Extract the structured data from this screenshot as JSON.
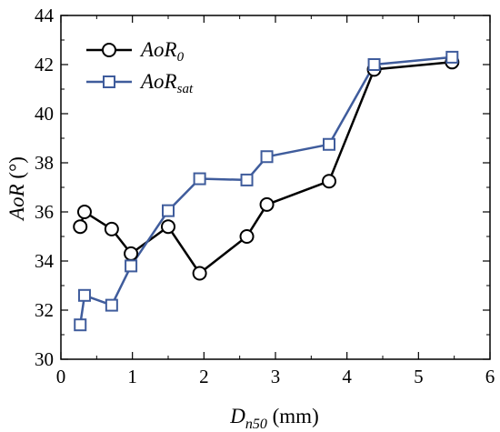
{
  "chart_data": {
    "type": "line",
    "xlabel": {
      "main": "D",
      "sub": "n50",
      "unit": " (mm)"
    },
    "ylabel": {
      "main": "AoR",
      "unit": " (°)"
    },
    "xlim": [
      0,
      6
    ],
    "ylim": [
      30,
      44
    ],
    "xticks": [
      "0",
      "1",
      "2",
      "3",
      "4",
      "5",
      "6"
    ],
    "yticks": [
      "30",
      "32",
      "34",
      "36",
      "38",
      "40",
      "42",
      "44"
    ],
    "grid": false,
    "legend_position": "top-left",
    "series": [
      {
        "name": {
          "main": "AoR",
          "sub": "0"
        },
        "marker": "circle",
        "color": "#000000",
        "points": [
          [
            0.27,
            35.4
          ],
          [
            0.33,
            36.0
          ],
          [
            0.71,
            35.3
          ],
          [
            0.98,
            34.3
          ],
          [
            1.5,
            35.4
          ],
          [
            1.94,
            33.5
          ],
          [
            2.6,
            35.0
          ],
          [
            2.88,
            36.3
          ],
          [
            3.75,
            37.25
          ],
          [
            4.38,
            41.8
          ],
          [
            5.47,
            42.1
          ]
        ]
      },
      {
        "name": {
          "main": "AoR",
          "sub": "sat"
        },
        "marker": "square",
        "color": "#3f5c9c",
        "points": [
          [
            0.27,
            31.4
          ],
          [
            0.33,
            32.6
          ],
          [
            0.71,
            32.2
          ],
          [
            0.98,
            33.8
          ],
          [
            1.5,
            36.05
          ],
          [
            1.94,
            37.35
          ],
          [
            2.6,
            37.3
          ],
          [
            2.88,
            38.25
          ],
          [
            3.75,
            38.75
          ],
          [
            4.38,
            42.0
          ],
          [
            5.47,
            42.3
          ]
        ]
      }
    ]
  }
}
